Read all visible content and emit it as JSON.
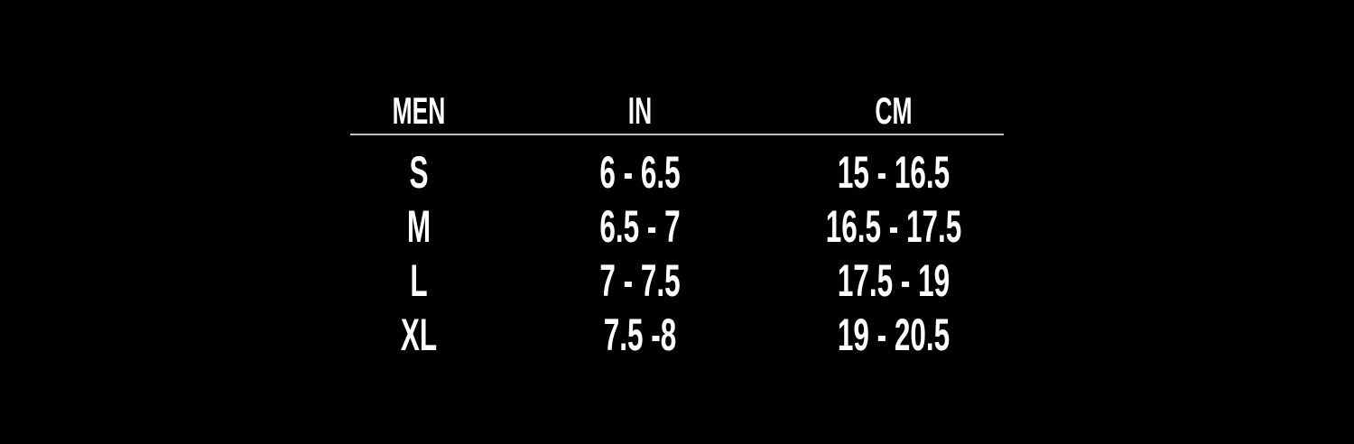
{
  "table": {
    "header": [
      "MEN",
      "IN",
      "CM"
    ],
    "rows": [
      [
        "S",
        "6 - 6.5",
        "15 - 16.5"
      ],
      [
        "M",
        "6.5 - 7",
        "16.5 - 17.5"
      ],
      [
        "L",
        "7 - 7.5",
        "17.5 - 19"
      ],
      [
        "XL",
        "7.5 -8",
        "19 - 20.5"
      ]
    ]
  }
}
